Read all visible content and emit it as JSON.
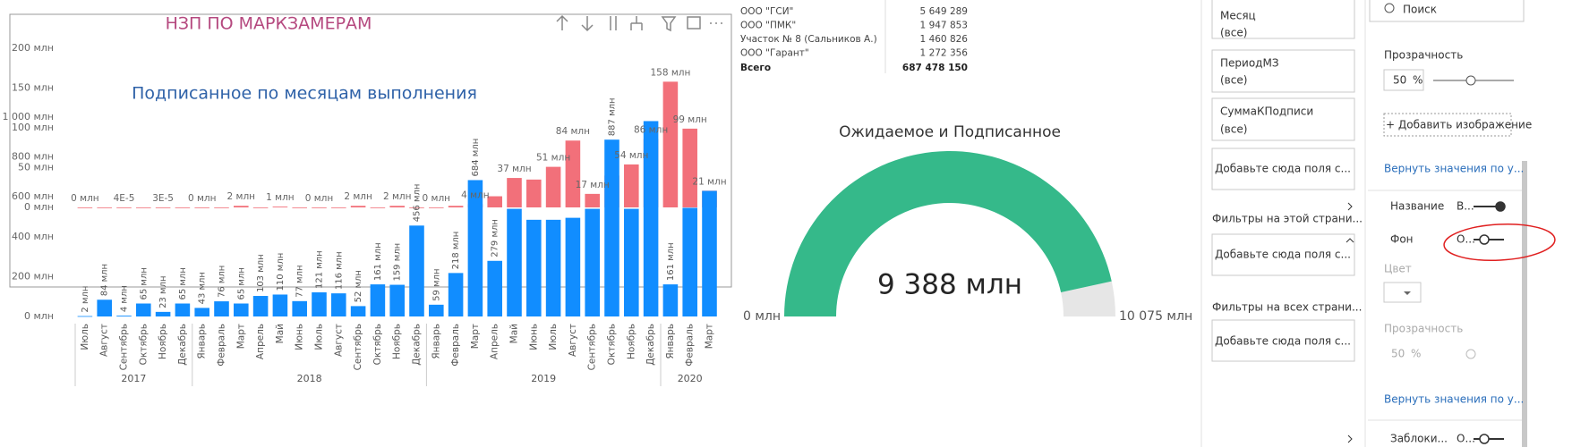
{
  "chart_data": [
    {
      "type": "bar",
      "title": "НЗП ПО МАРКЗАМЕРАМ",
      "color": "#f2707a",
      "values": [
        0,
        0,
        4e-05,
        0,
        3e-05,
        0,
        0,
        0,
        2,
        0,
        1,
        0,
        0,
        0,
        2,
        0,
        2,
        0,
        0,
        2,
        4,
        14,
        37,
        35,
        51,
        84,
        17,
        40,
        54,
        86,
        158,
        99,
        21
      ],
      "value_labels": [
        "0 млн",
        null,
        "4E-5",
        null,
        "3E-5",
        null,
        "0 млн",
        null,
        "2 млн",
        null,
        "1 млн",
        null,
        "0 млн",
        null,
        "2 млн",
        null,
        "2 млн",
        null,
        "0 млн",
        null,
        "4 млн",
        null,
        "37 млн",
        null,
        "51 млн",
        "84 млн",
        "17 млн",
        null,
        "54 млн",
        "86 млн",
        "158 млн",
        "99 млн",
        "21 млн"
      ],
      "ylim": [
        0,
        200
      ],
      "yticks": [
        {
          "value": 0,
          "label": "0 млн"
        },
        {
          "value": 50,
          "label": "50 млн"
        },
        {
          "value": 100,
          "label": "100 млн"
        },
        {
          "value": 150,
          "label": "150 млн"
        },
        {
          "value": 200,
          "label": "200 млн"
        }
      ]
    },
    {
      "type": "bar",
      "title": "Подписанное по месяцам выполнения",
      "color": "#118dff",
      "categories": [
        "Июль",
        "Август",
        "Сентябрь",
        "Октябрь",
        "Ноябрь",
        "Декабрь",
        "Январь",
        "Февраль",
        "Март",
        "Апрель",
        "Май",
        "Июнь",
        "Июль",
        "Август",
        "Сентябрь",
        "Октябрь",
        "Ноябрь",
        "Декабрь",
        "Январь",
        "Февраль",
        "Март",
        "Апрель",
        "Май",
        "Июнь",
        "Июль",
        "Август",
        "Сентябрь",
        "Октябрь",
        "Ноябрь",
        "Декабрь",
        "Январь",
        "Февраль",
        "Март"
      ],
      "groups": [
        {
          "label": "2017",
          "size": 6
        },
        {
          "label": "2018",
          "size": 12
        },
        {
          "label": "2019",
          "size": 12
        },
        {
          "label": "2020",
          "size": 3
        }
      ],
      "values": [
        2,
        84,
        4,
        65,
        23,
        65,
        43,
        76,
        65,
        103,
        110,
        77,
        121,
        116,
        52,
        161,
        159,
        456,
        59,
        218,
        684,
        279,
        540,
        485,
        485,
        495,
        540,
        887,
        540,
        980,
        161,
        545,
        630
      ],
      "value_labels": [
        "2 млн",
        "84 млн",
        "4 млн",
        "65 млн",
        "23 млн",
        "65 млн",
        "43 млн",
        "76 млн",
        "65 млн",
        "103 млн",
        "110 млн",
        "77 млн",
        "121 млн",
        "116 млн",
        "52 млн",
        "161 млн",
        "159 млн",
        "456 млн",
        "59 млн",
        "218 млн",
        "684 млн",
        "279 млн",
        null,
        null,
        null,
        null,
        null,
        "887 млн",
        null,
        null,
        "161 млн",
        null,
        null
      ],
      "ylim": [
        0,
        1000
      ],
      "yticks": [
        {
          "value": 0,
          "label": "0 млн"
        },
        {
          "value": 200,
          "label": "200 млн"
        },
        {
          "value": 400,
          "label": "400 млн"
        },
        {
          "value": 600,
          "label": "600 млн"
        },
        {
          "value": 800,
          "label": "800 млн"
        },
        {
          "value": 1000,
          "label": "1 000 млн"
        }
      ]
    },
    {
      "type": "gauge",
      "title": "Ожидаемое и Подписанное",
      "color": "#35b98a",
      "value": 9388,
      "value_label": "9 388 млн",
      "min": 0,
      "min_label": "0 млн",
      "max": 10075,
      "max_label": "10 075 млн"
    }
  ],
  "table": {
    "rows": [
      [
        "ООО \"ГСИ\"",
        "5 649 289"
      ],
      [
        "ООО \"ПМК\"",
        "1 947 853"
      ],
      [
        "Участок № 8 (Сальников А.)",
        "1 460 826"
      ],
      [
        "ООО \"Гарант\"",
        "1 272 356"
      ]
    ],
    "total": [
      "Всего",
      "687 478 150"
    ]
  },
  "filters": {
    "cards": [
      [
        "Месяц",
        "(все)"
      ],
      [
        "ПериодМЗ",
        "(все)"
      ],
      [
        "СуммаКПодписи",
        "(все)"
      ]
    ],
    "add_here": "Добавьте сюда поля с...",
    "page_header": "Фильтры на этой страни...",
    "all_header": "Фильтры на всех страни..."
  },
  "format_pane": {
    "search": "Поиск",
    "transparency": "Прозрачность",
    "transparency_value": "50",
    "percent": "%",
    "add_image": "+ Добавить изображение",
    "reset": "Вернуть значения по у...",
    "title_section": "Название",
    "title_state": "В...",
    "background_section": "Фон",
    "background_state": "О...",
    "color": "Цвет",
    "lock_section": "Заблоки...",
    "lock_state": "О..."
  }
}
